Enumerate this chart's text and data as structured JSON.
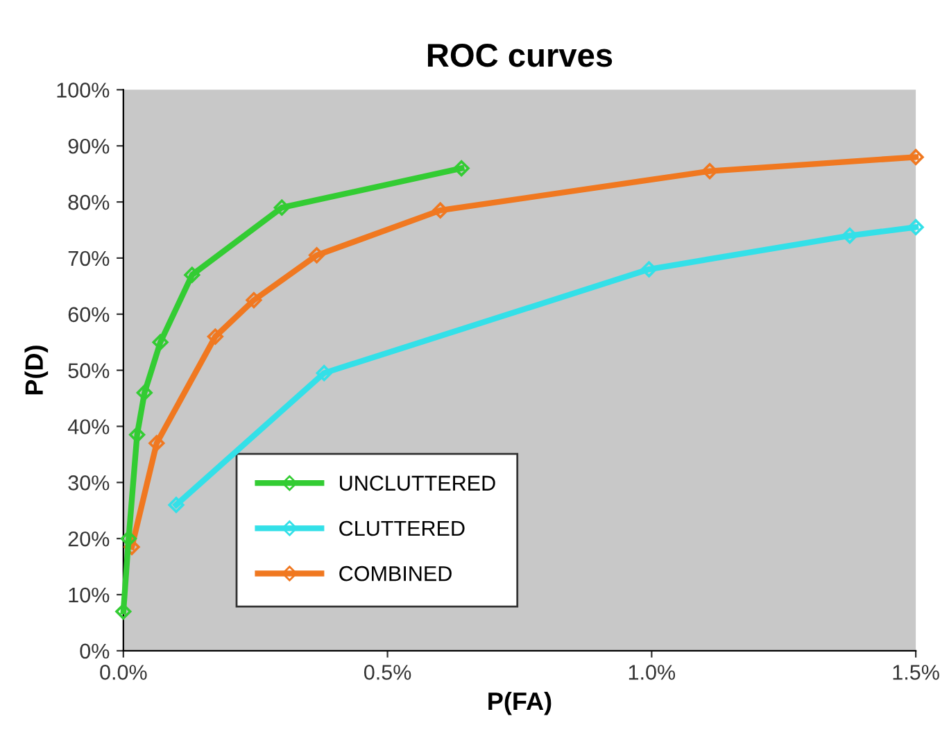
{
  "chart_data": {
    "type": "line",
    "title": "ROC curves",
    "xlabel": "P(FA)",
    "ylabel": "P(D)",
    "xlim": [
      0,
      1.5
    ],
    "ylim": [
      0,
      100
    ],
    "xticks": [
      {
        "value": 0,
        "label": "0.0%"
      },
      {
        "value": 0.5,
        "label": "0.5%"
      },
      {
        "value": 1.0,
        "label": "1.0%"
      },
      {
        "value": 1.5,
        "label": "1.5%"
      }
    ],
    "yticks": [
      {
        "value": 0,
        "label": "0%"
      },
      {
        "value": 10,
        "label": "10%"
      },
      {
        "value": 20,
        "label": "20%"
      },
      {
        "value": 30,
        "label": "30%"
      },
      {
        "value": 40,
        "label": "40%"
      },
      {
        "value": 50,
        "label": "50%"
      },
      {
        "value": 60,
        "label": "60%"
      },
      {
        "value": 70,
        "label": "70%"
      },
      {
        "value": 80,
        "label": "80%"
      },
      {
        "value": 90,
        "label": "90%"
      },
      {
        "value": 100,
        "label": "100%"
      }
    ],
    "grid": false,
    "legend": "bottom",
    "marker": "diamond",
    "line_style": "solid",
    "series": [
      {
        "name": "UNCLUTTERED",
        "color": "#33cc33",
        "x": [
          0.0,
          0.01,
          0.026,
          0.04,
          0.07,
          0.13,
          0.3,
          0.64
        ],
        "values": [
          7,
          20,
          38.5,
          46,
          55,
          67,
          79,
          86
        ]
      },
      {
        "name": "CLUTTERED",
        "color": "#33e0e8",
        "x": [
          0.1,
          0.38,
          0.995,
          1.375,
          1.5
        ],
        "values": [
          26,
          49.5,
          68,
          74,
          75.5
        ]
      },
      {
        "name": "COMBINED",
        "color": "#f07820",
        "x": [
          0.016,
          0.063,
          0.174,
          0.247,
          0.366,
          0.6,
          1.11,
          1.5
        ],
        "values": [
          18.5,
          37,
          56,
          62.5,
          70.5,
          78.5,
          85.5,
          88
        ]
      }
    ]
  }
}
